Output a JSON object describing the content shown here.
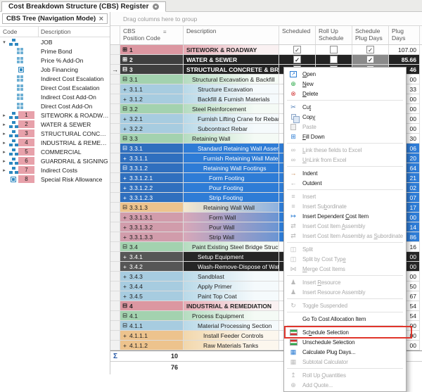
{
  "tab": {
    "title": "Cost Breakdown Structure (CBS) Register"
  },
  "left_panel": {
    "title": "CBS Tree (Navigation Mode)",
    "close_glyph": "×",
    "columns": {
      "code": "Code",
      "description": "Description"
    },
    "items": [
      {
        "code": "",
        "desc": "JOB",
        "icon": "org-chart",
        "expander": "expanded"
      },
      {
        "code": "",
        "desc": "Prime Bond",
        "icon": "grid",
        "expander": ""
      },
      {
        "code": "",
        "desc": "Price % Add-On",
        "icon": "grid",
        "expander": ""
      },
      {
        "code": "",
        "desc": "Job Financing",
        "icon": "square",
        "expander": ""
      },
      {
        "code": "",
        "desc": "Indirect Cost Escalation",
        "icon": "grid",
        "expander": ""
      },
      {
        "code": "",
        "desc": "Direct Cost Escalation",
        "icon": "grid",
        "expander": ""
      },
      {
        "code": "",
        "desc": "Indirect Cost Add-On",
        "icon": "grid",
        "expander": ""
      },
      {
        "code": "",
        "desc": "Direct Cost Add-On",
        "icon": "grid",
        "expander": ""
      },
      {
        "code": "1",
        "desc": "SITEWORK & ROADWAY",
        "icon": "org-chart",
        "expander": "collapsed"
      },
      {
        "code": "2",
        "desc": "WATER & SEWER",
        "icon": "org-chart",
        "expander": "collapsed"
      },
      {
        "code": "3",
        "desc": "STRUCTURAL CONCRETE & BRIDGES",
        "icon": "org-chart",
        "expander": "collapsed"
      },
      {
        "code": "4",
        "desc": "INDUSTRIAL & REMEDIATION",
        "icon": "org-chart",
        "expander": "collapsed"
      },
      {
        "code": "5",
        "desc": "COMMERCIAL",
        "icon": "org-chart",
        "expander": "collapsed"
      },
      {
        "code": "6",
        "desc": "GUARDRAIL & SIGNING",
        "icon": "org-chart",
        "expander": "collapsed"
      },
      {
        "code": "7",
        "desc": "Indirect Costs",
        "icon": "org-chart",
        "expander": "collapsed"
      },
      {
        "code": "8",
        "desc": "Special Risk Allowance",
        "icon": "square",
        "expander": ""
      }
    ]
  },
  "grid": {
    "group_hint": "Drag columns here to group",
    "current_row_indicator": "→",
    "columns": [
      {
        "label": "CBS\nPosition Code",
        "sort_icon": "≡"
      },
      {
        "label": "Description"
      },
      {
        "label": "Scheduled"
      },
      {
        "label": "Roll Up\nSchedule"
      },
      {
        "label": "Schedule\nPlug Days"
      },
      {
        "label": "Plug\nDays"
      }
    ],
    "rows": [
      {
        "code": "1",
        "desc": "SITEWORK & ROADWAY",
        "type": "l1",
        "exp": "boxplus",
        "level": 1,
        "checks": {
          "scheduled": true,
          "rollup": false,
          "plug": true
        },
        "plug": "107.00"
      },
      {
        "code": "2",
        "desc": "WATER & SEWER",
        "type": "dark",
        "exp": "boxplus",
        "level": 1,
        "checks": {
          "scheduled": true,
          "rollup": false,
          "plug": true
        },
        "plug": "85.66"
      },
      {
        "code": "3",
        "desc": "STRUCTURAL CONCRETE & BRIDGES",
        "type": "dark",
        "exp": "boxminus",
        "level": 1,
        "current": true,
        "checks": {
          "scheduled": true,
          "rollup": false,
          "plug": true
        },
        "plug": "46"
      },
      {
        "code": "3.1",
        "desc": "Structural Excavation & Backfill",
        "type": "green",
        "exp": "boxminus",
        "level": 2,
        "plug": "00"
      },
      {
        "code": "3.1.1",
        "desc": "Structure Excavation",
        "type": "lblue",
        "exp": "plus",
        "level": 3,
        "plug": "33"
      },
      {
        "code": "3.1.2",
        "desc": "Backfill & Furnish Materials",
        "type": "lblue",
        "exp": "plus",
        "level": 3,
        "plug": "00"
      },
      {
        "code": "3.2",
        "desc": "Steel Reinforcement",
        "type": "green",
        "exp": "boxminus",
        "level": 2,
        "plug": "00"
      },
      {
        "code": "3.2.1",
        "desc": "Furnish Lifting Crane for Rebar",
        "type": "lblue",
        "exp": "plus",
        "level": 3,
        "plug": "00"
      },
      {
        "code": "3.2.2",
        "desc": "Subcontract Rebar",
        "type": "lblue",
        "exp": "plus",
        "level": 3,
        "plug": "00"
      },
      {
        "code": "3.3",
        "desc": "Retaining Wall",
        "type": "green",
        "exp": "boxminus",
        "level": 2,
        "plug": "30"
      },
      {
        "code": "3.3.1",
        "desc": "Standard Retaining Wall Assembly",
        "type": "blue",
        "exp": "boxminus",
        "level": 3,
        "plug": "06"
      },
      {
        "code": "3.3.1.1",
        "desc": "Furnish Retaining Wall Materials",
        "type": "blue",
        "exp": "plus",
        "level": 4,
        "plug": "20"
      },
      {
        "code": "3.3.1.2",
        "desc": "Retaining Wall Footings",
        "type": "blue",
        "exp": "boxminus",
        "level": 4,
        "plug": "64"
      },
      {
        "code": "3.3.1.2.1",
        "desc": "Form Footing",
        "type": "blue",
        "exp": "plus",
        "level": 5,
        "plug": "21"
      },
      {
        "code": "3.3.1.2.2",
        "desc": "Pour Footing",
        "type": "blue",
        "exp": "plus",
        "level": 5,
        "plug": "02"
      },
      {
        "code": "3.3.1.2.3",
        "desc": "Strip Footing",
        "type": "blue",
        "exp": "plus",
        "level": 5,
        "plug": "07"
      },
      {
        "code": "3.3.1.3",
        "desc": "Retaining Wall Wall",
        "type": "tanblue",
        "exp": "boxminus",
        "level": 4,
        "plug": "17"
      },
      {
        "code": "3.3.1.3.1",
        "desc": "Form Wall",
        "type": "pinkblue",
        "exp": "plus",
        "level": 5,
        "plug": "00"
      },
      {
        "code": "3.3.1.3.2",
        "desc": "Pour Wall",
        "type": "pinkblue",
        "exp": "plus",
        "level": 5,
        "plug": "14"
      },
      {
        "code": "3.3.1.3.3",
        "desc": "Strip Wall",
        "type": "pinkblue",
        "exp": "plus",
        "level": 5,
        "plug": "86"
      },
      {
        "code": "3.4",
        "desc": "Paint Existing Steel Bridge Structure",
        "type": "green",
        "exp": "boxminus",
        "level": 2,
        "plug": "16"
      },
      {
        "code": "3.4.1",
        "desc": "Setup Equipment",
        "type": "dark2",
        "exp": "plus",
        "level": 3,
        "plug": "00"
      },
      {
        "code": "3.4.2",
        "desc": "Wash-Remove-Dispose of Water",
        "type": "dark2",
        "exp": "plus",
        "level": 3,
        "plug": "00"
      },
      {
        "code": "3.4.3",
        "desc": "Sandblast",
        "type": "lblue",
        "exp": "plus",
        "level": 3,
        "plug": "00"
      },
      {
        "code": "3.4.4",
        "desc": "Apply Primer",
        "type": "lblue",
        "exp": "plus",
        "level": 3,
        "plug": "50"
      },
      {
        "code": "3.4.5",
        "desc": "Paint Top Coat",
        "type": "lblue",
        "exp": "plus",
        "level": 3,
        "plug": "67"
      },
      {
        "code": "4",
        "desc": "INDUSTRIAL & REMEDIATION",
        "type": "l1",
        "exp": "boxminus",
        "level": 1,
        "plug": "54"
      },
      {
        "code": "4.1",
        "desc": "Process Equipment",
        "type": "green",
        "exp": "boxminus",
        "level": 2,
        "plug": "54"
      },
      {
        "code": "4.1.1",
        "desc": "Material Processing Section",
        "type": "lblue",
        "exp": "boxminus",
        "level": 3,
        "plug": "00"
      },
      {
        "code": "4.1.1.1",
        "desc": "Install Feeder Controls",
        "type": "tan",
        "exp": "plus",
        "level": 4,
        "plug": "00"
      },
      {
        "code": "4.1.1.2",
        "desc": "Raw Materials Tanks",
        "type": "tan",
        "exp": "plus",
        "level": 4,
        "plug": "00"
      }
    ],
    "summary": {
      "sigma": "Σ",
      "count_top": "10",
      "count_bottom": "76"
    }
  },
  "context_menu": {
    "items": [
      {
        "label": "Open",
        "u": 0,
        "icon": "open",
        "style": "box",
        "glyph": "↗",
        "color": "#2b7cd3",
        "enabled": true
      },
      {
        "label": "New",
        "u": 0,
        "icon": "new",
        "glyph": "⊕",
        "color": "#28a745",
        "enabled": true
      },
      {
        "label": "Delete",
        "u": 0,
        "icon": "delete",
        "glyph": "⊗",
        "color": "#d23b3b",
        "enabled": true
      },
      {
        "type": "separator"
      },
      {
        "label": "Cut",
        "u": 2,
        "icon": "cut",
        "glyph": "✂",
        "color": "#4a7ab5",
        "enabled": true
      },
      {
        "label": "Copy",
        "u": 3,
        "icon": "copy",
        "style": "copy",
        "enabled": true
      },
      {
        "label": "Paste",
        "icon": "paste",
        "style": "paste",
        "enabled": false
      },
      {
        "label": "Fill Down",
        "u": 0,
        "icon": "fill-down",
        "glyph": "⊞",
        "color": "#2b7cd3",
        "enabled": true
      },
      {
        "type": "separator"
      },
      {
        "label": "Link these fields to Excel",
        "u": 0,
        "icon": "link-excel",
        "glyph": "∞",
        "color": "#b2b2b2",
        "enabled": false
      },
      {
        "label": "UnLink from Excel",
        "u": 0,
        "icon": "unlink-excel",
        "glyph": "∞",
        "color": "#b2b2b2",
        "enabled": false
      },
      {
        "type": "separator"
      },
      {
        "label": "Indent",
        "icon": "indent",
        "glyph": "→",
        "color": "#c5854c",
        "enabled": true
      },
      {
        "label": "Outdent",
        "icon": "outdent",
        "glyph": "←",
        "color": "#a9a9a9",
        "enabled": true
      },
      {
        "type": "separator"
      },
      {
        "label": "Insert",
        "icon": "insert",
        "glyph": "≡",
        "color": "#b8b8b8",
        "enabled": false
      },
      {
        "label": "Insert Subordinate",
        "u": 9,
        "icon": "insert-subordinate",
        "glyph": "≡",
        "color": "#b8b8b8",
        "enabled": false
      },
      {
        "label": "Insert Dependent Cost Item",
        "u": 17,
        "icon": "insert-dependent-cost-item",
        "glyph": "↦",
        "color": "#2b7cd3",
        "enabled": true
      },
      {
        "label": "Insert Cost Item Assembly",
        "u": 17,
        "icon": "insert-cost-item-assembly",
        "glyph": "⇄",
        "color": "#b8b8b8",
        "enabled": false
      },
      {
        "label": "Insert Cost Item Assembly as Subordinate",
        "u": 29,
        "icon": "insert-cost-item-assembly-as-subordinate",
        "glyph": "⇄",
        "color": "#b8b8b8",
        "enabled": false
      },
      {
        "type": "separator"
      },
      {
        "label": "Split",
        "icon": "split",
        "glyph": "◫",
        "color": "#b8b8b8",
        "enabled": false
      },
      {
        "label": "Split by Cost Type",
        "u": 17,
        "icon": "split-by-cost-type",
        "glyph": "◫",
        "color": "#b8b8b8",
        "enabled": false
      },
      {
        "label": "Merge Cost Items",
        "u": 0,
        "icon": "merge-cost-items",
        "glyph": "⋈",
        "color": "#b8b8b8",
        "enabled": false
      },
      {
        "type": "separator"
      },
      {
        "label": "Insert Resource",
        "u": 7,
        "icon": "insert-resource",
        "glyph": "♟",
        "color": "#b8b8b8",
        "enabled": false
      },
      {
        "label": "Insert Resource Assembly",
        "icon": "insert-resource-assembly",
        "glyph": "♟",
        "color": "#b8b8b8",
        "enabled": false
      },
      {
        "type": "separator"
      },
      {
        "label": "Toggle Suspended",
        "u": 3,
        "icon": "toggle-suspended",
        "glyph": "↻",
        "color": "#b8b8b8",
        "enabled": false
      },
      {
        "type": "separator"
      },
      {
        "label": "Go To Cost Allocation Item",
        "enabled": true
      },
      {
        "type": "separator"
      },
      {
        "label": "Schedule Selection",
        "u": 2,
        "icon": "schedule-selection",
        "style": "sched-g",
        "enabled": true,
        "highlighted": true
      },
      {
        "label": "Unschedule Selection",
        "icon": "unschedule-selection",
        "style": "sched-r",
        "enabled": true
      },
      {
        "label": "Calculate Plug Days...",
        "icon": "calculate-plug-days",
        "glyph": "▦",
        "color": "#2b7cd3",
        "enabled": true
      },
      {
        "label": "Subtotal Calculator",
        "icon": "subtotal-calculator",
        "glyph": "▦",
        "color": "#bdbdbd",
        "enabled": false
      },
      {
        "type": "separator"
      },
      {
        "label": "Roll Up Quantities",
        "u": 8,
        "icon": "roll-up-quantities",
        "glyph": "↥",
        "color": "#b8b8b8",
        "enabled": false
      },
      {
        "label": "Add Quote...",
        "icon": "add-quote",
        "glyph": "⊕",
        "color": "#b8b8b8",
        "enabled": false
      }
    ]
  }
}
